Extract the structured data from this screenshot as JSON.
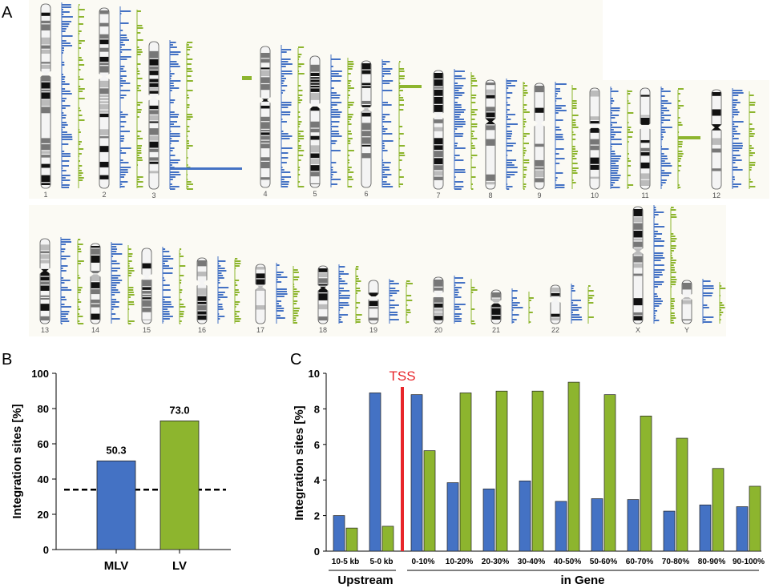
{
  "panel_labels": {
    "a": "A",
    "b": "B",
    "c": "C"
  },
  "colors": {
    "mlv": "#4472c4",
    "lv": "#8db52e",
    "tss": "#e8262b",
    "band_dark": "#111111"
  },
  "karyotype": {
    "row1": [
      "1",
      "2",
      "3",
      "4",
      "5",
      "6",
      "7",
      "8",
      "9",
      "10",
      "11",
      "12"
    ],
    "row2": [
      "13",
      "14",
      "15",
      "16",
      "17",
      "18",
      "19",
      "20",
      "21",
      "22",
      "X",
      "Y"
    ]
  },
  "chart_data": [
    {
      "type": "bar",
      "id": "B",
      "categories": [
        "MLV",
        "LV"
      ],
      "values": [
        50.3,
        73.0
      ],
      "data_labels": [
        "50.3",
        "73.0"
      ],
      "ylabel": "Integration sites [%]",
      "ylim": [
        0,
        100
      ],
      "yticks": [
        "0",
        "20",
        "40",
        "60",
        "80",
        "100"
      ],
      "reference_line": 34,
      "grid": false
    },
    {
      "type": "bar",
      "id": "C",
      "categories": [
        "10-5 kb",
        "5-0 kb",
        "0-10%",
        "10-20%",
        "20-30%",
        "30-40%",
        "40-50%",
        "50-60%",
        "60-70%",
        "70-80%",
        "80-90%",
        "90-100%"
      ],
      "series": [
        {
          "name": "MLV",
          "values": [
            2.0,
            8.9,
            8.8,
            3.85,
            3.5,
            3.95,
            2.8,
            2.95,
            2.9,
            2.25,
            2.6,
            2.5
          ]
        },
        {
          "name": "LV",
          "values": [
            1.3,
            1.4,
            5.65,
            8.9,
            9.0,
            9.0,
            9.5,
            8.8,
            7.6,
            6.35,
            4.65,
            3.65
          ]
        }
      ],
      "ylabel": "Integration sites [%]",
      "ylim": [
        0,
        10
      ],
      "yticks": [
        "0",
        "2",
        "4",
        "6",
        "8",
        "10"
      ],
      "annotation": "TSS",
      "group_labels": [
        "Upstream",
        "in Gene"
      ],
      "grid": false
    }
  ]
}
